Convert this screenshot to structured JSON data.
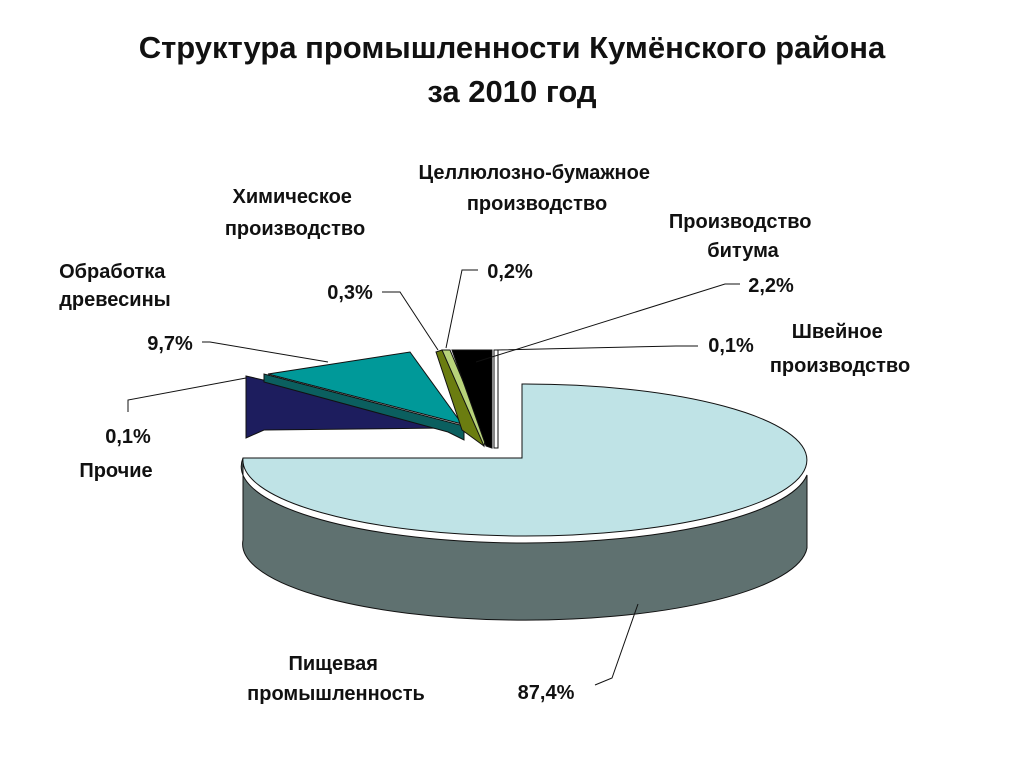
{
  "title_line1": "Структура промышленности Кумёнского района",
  "title_line2": "за 2010 год",
  "chart_data": {
    "type": "pie",
    "title": "Структура промышленности Кумёнского района за 2010 год",
    "slices": [
      {
        "name": "Пищевая промышленность",
        "label": [
          "Пищевая",
          "промышленность"
        ],
        "value": 87.4,
        "value_label": "87,4%",
        "color": "#bfe3e6"
      },
      {
        "name": "Прочие",
        "label": [
          "Прочие"
        ],
        "value": 0.1,
        "value_label": "0,1%",
        "color": "#1d1d5e"
      },
      {
        "name": "Обработка древесины",
        "label": [
          "Обработка",
          "древесины"
        ],
        "value": 9.7,
        "value_label": "9,7%",
        "color": "#009999"
      },
      {
        "name": "Химическое производство",
        "label": [
          "Химическое",
          "производство"
        ],
        "value": 0.3,
        "value_label": "0,3%",
        "color": "#6b7d10"
      },
      {
        "name": "Целлюлозно-бумажное производство",
        "label": [
          "Целлюлозно-бумажное",
          "производство"
        ],
        "value": 0.2,
        "value_label": "0,2%",
        "color": "#b8d37a"
      },
      {
        "name": "Производство битума",
        "label": [
          "Производство",
          "битума"
        ],
        "value": 2.2,
        "value_label": "2,2%",
        "color": "#000000"
      },
      {
        "name": "Швейное производство",
        "label": [
          "Швейное",
          "производство"
        ],
        "value": 0.1,
        "value_label": "0,1%",
        "color": "#ffffff"
      }
    ]
  }
}
